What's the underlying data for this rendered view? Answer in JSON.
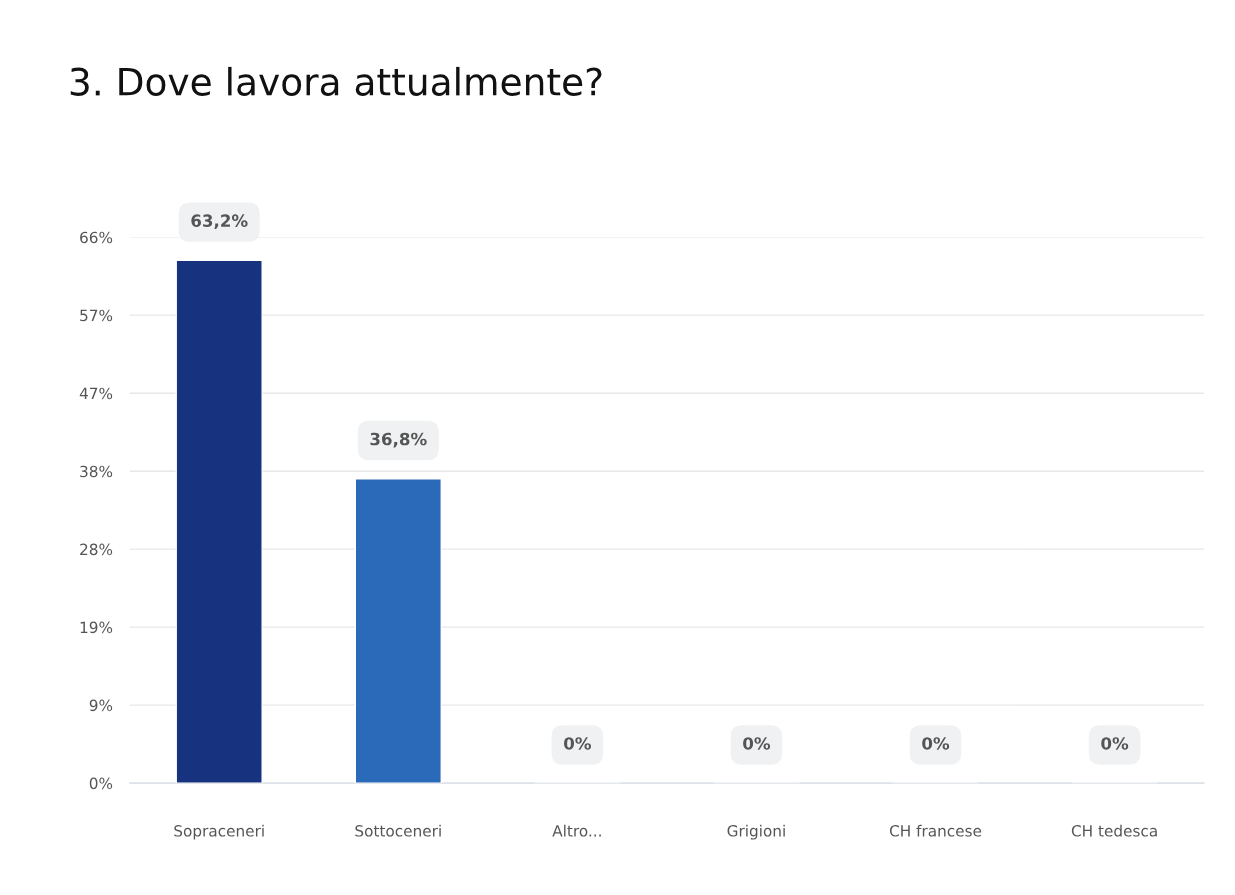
{
  "chart_data": {
    "type": "bar",
    "title": "3. Dove lavora attualmente?",
    "categories": [
      "Sopraceneri",
      "Sottoceneri",
      "Altro...",
      "Grigioni",
      "CH francese",
      "CH tedesca"
    ],
    "values": [
      63.2,
      36.8,
      0,
      0,
      0,
      0
    ],
    "colors": [
      "#17337f",
      "#2a6ab8",
      null,
      null,
      null,
      null
    ],
    "value_labels": [
      "63,2%",
      "36,8%",
      "0%",
      "0%",
      "0%",
      "0%"
    ],
    "ylim": [
      0,
      66
    ],
    "yticks": [
      {
        "value": 0,
        "label": "0%"
      },
      {
        "value": 9.43,
        "label": "9%"
      },
      {
        "value": 18.86,
        "label": "19%"
      },
      {
        "value": 28.29,
        "label": "28%"
      },
      {
        "value": 37.71,
        "label": "38%"
      },
      {
        "value": 47.14,
        "label": "47%"
      },
      {
        "value": 56.57,
        "label": "57%"
      },
      {
        "value": 66,
        "label": "66%"
      }
    ],
    "grid": "y",
    "legend": false
  }
}
